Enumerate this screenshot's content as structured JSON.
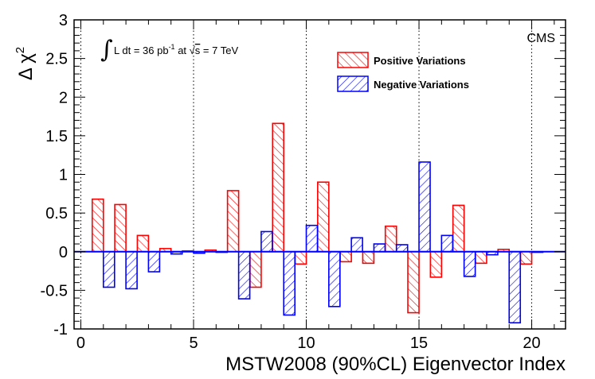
{
  "chart_data": {
    "type": "bar",
    "title": "",
    "xlabel": "MSTW2008 (90%CL) Eigenvector Index",
    "ylabel": "Δ χ",
    "ylabel_exponent": "2",
    "xlim": [
      -0.3,
      21.5
    ],
    "ylim": [
      -1,
      3
    ],
    "xticks": [
      0,
      5,
      10,
      15,
      20
    ],
    "xtick_labels": [
      "0",
      "5",
      "10",
      "15",
      "20"
    ],
    "yticks": [
      -1,
      -0.5,
      0,
      0.5,
      1,
      1.5,
      2,
      2.5,
      3
    ],
    "ytick_labels": [
      "-1",
      "-0.5",
      "0",
      "0.5",
      "1",
      "1.5",
      "2",
      "2.5",
      "3"
    ],
    "vertical_dotted_lines": [
      0,
      5,
      10,
      15,
      20
    ],
    "x": [
      1,
      2,
      3,
      4,
      5,
      6,
      7,
      8,
      9,
      10,
      11,
      12,
      13,
      14,
      15,
      16,
      17,
      18,
      19,
      20
    ],
    "series": [
      {
        "name": "Positive Variations",
        "color": "#ff0000",
        "values": [
          0.68,
          0.61,
          0.21,
          0.04,
          0.01,
          0.02,
          0.79,
          -0.46,
          1.66,
          -0.16,
          0.9,
          -0.13,
          -0.15,
          0.33,
          -0.79,
          -0.33,
          0.6,
          -0.15,
          0.03,
          -0.16
        ]
      },
      {
        "name": "Negative Variations",
        "color": "#0000ff",
        "values": [
          -0.46,
          -0.48,
          -0.26,
          -0.03,
          -0.02,
          0.0,
          -0.61,
          0.26,
          -0.82,
          0.34,
          -0.71,
          0.18,
          0.1,
          0.09,
          1.16,
          0.21,
          -0.32,
          -0.04,
          -0.92,
          0.0
        ]
      }
    ],
    "annotation": {
      "integral": "∫",
      "lumi_text": "L dt = 36 pb",
      "lumi_exp": "-1",
      "at_text": " at ",
      "sqrt_symbol": "√",
      "energy_var": "s",
      "energy_text": " = 7 TeV"
    },
    "experiment_label": "CMS",
    "legend_position": "top-center"
  }
}
